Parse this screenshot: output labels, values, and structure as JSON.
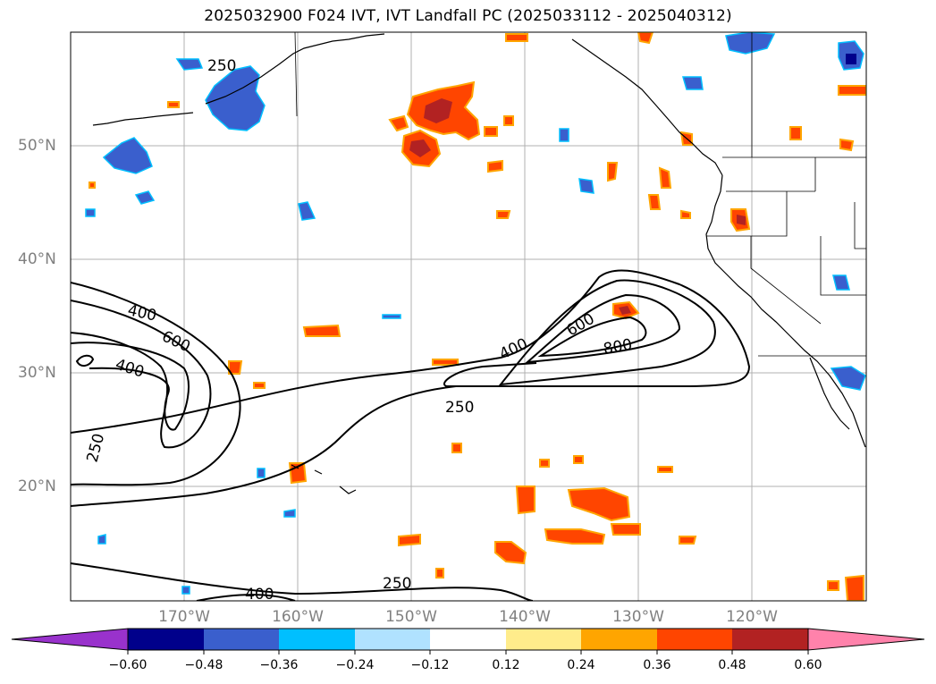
{
  "title": "2025032900 F024 IVT, IVT Landfall PC (2025033112 - 2025040312)",
  "map": {
    "lat_labels": [
      "50°N",
      "40°N",
      "30°N",
      "20°N"
    ],
    "lon_labels": [
      "170°W",
      "160°W",
      "150°W",
      "140°W",
      "130°W",
      "120°W"
    ],
    "contour_labels": [
      "250",
      "400",
      "600",
      "400",
      "250",
      "600",
      "400",
      "800",
      "250",
      "250",
      "400"
    ]
  },
  "colorbar": {
    "colors": [
      "#9932CC",
      "#00008B",
      "#3A5FCD",
      "#00BFFF",
      "#B0E2FF",
      "#FFFFFF",
      "#FFEC8B",
      "#FFA500",
      "#FF4500",
      "#B22222",
      "#FF82AB"
    ],
    "tick_labels": [
      "−0.60",
      "−0.48",
      "−0.36",
      "−0.24",
      "−0.12",
      "0.12",
      "0.24",
      "0.36",
      "0.48",
      "0.60"
    ]
  }
}
